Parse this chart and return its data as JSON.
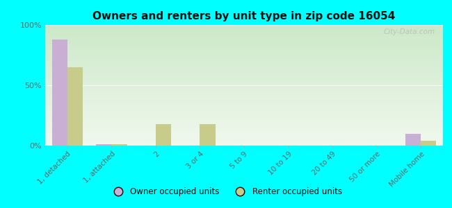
{
  "title": "Owners and renters by unit type in zip code 16054",
  "categories": [
    "1, detached",
    "1, attached",
    "2",
    "3 or 4",
    "5 to 9",
    "10 to 19",
    "20 to 49",
    "50 or more",
    "Mobile home"
  ],
  "owner_values": [
    88,
    1,
    0,
    0,
    0,
    0,
    0,
    0,
    10
  ],
  "renter_values": [
    65,
    1,
    18,
    18,
    0,
    0,
    0,
    0,
    4
  ],
  "owner_color": "#c9afd4",
  "renter_color": "#c8cc8a",
  "background_color": "#00ffff",
  "grad_top": "#cce8c8",
  "grad_bot": "#f0f8ee",
  "ylim": [
    0,
    100
  ],
  "yticks": [
    0,
    50,
    100
  ],
  "yticklabels": [
    "0%",
    "50%",
    "100%"
  ],
  "legend_owner": "Owner occupied units",
  "legend_renter": "Renter occupied units",
  "watermark": "City-Data.com",
  "bar_width": 0.35
}
